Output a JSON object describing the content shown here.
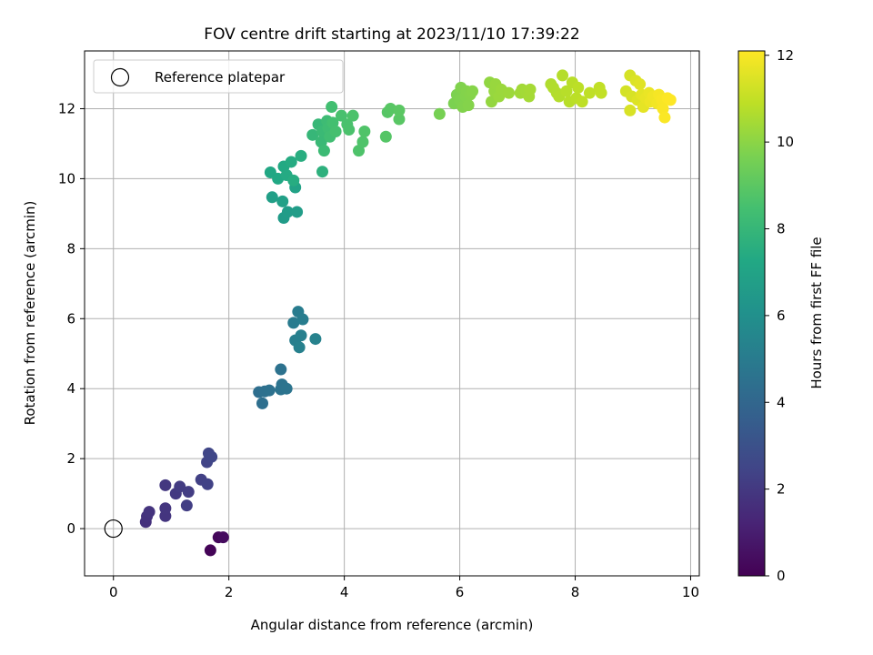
{
  "chart_data": {
    "type": "scatter",
    "title": "FOV centre drift starting at 2023/11/10 17:39:22",
    "xlabel": "Angular distance from reference (arcmin)",
    "ylabel": "Rotation from reference (arcmin)",
    "xlim": [
      -0.5,
      10.15
    ],
    "ylim": [
      -1.35,
      13.65
    ],
    "xticks": [
      "0",
      "2",
      "4",
      "6",
      "8",
      "10"
    ],
    "yticks": [
      "0",
      "2",
      "4",
      "6",
      "8",
      "10",
      "12"
    ],
    "grid": true,
    "legend": {
      "position": "top-left",
      "entries": [
        "Reference platepar"
      ]
    },
    "reference_point": {
      "x": 0,
      "y": 0
    },
    "colorbar": {
      "label": "Hours from first FF file",
      "colormap": "viridis",
      "range": [
        0,
        12.1
      ],
      "ticks": [
        "0",
        "2",
        "4",
        "6",
        "8",
        "10",
        "12"
      ]
    },
    "points": [
      {
        "x": 1.68,
        "y": -0.62,
        "h": 0.1
      },
      {
        "x": 1.82,
        "y": -0.25,
        "h": 0.25
      },
      {
        "x": 1.9,
        "y": -0.25,
        "h": 0.35
      },
      {
        "x": 0.56,
        "y": 0.19,
        "h": 1.7
      },
      {
        "x": 0.58,
        "y": 0.35,
        "h": 1.75
      },
      {
        "x": 0.62,
        "y": 0.48,
        "h": 1.8
      },
      {
        "x": 0.9,
        "y": 0.36,
        "h": 1.85
      },
      {
        "x": 0.9,
        "y": 0.58,
        "h": 1.9
      },
      {
        "x": 0.9,
        "y": 1.24,
        "h": 1.95
      },
      {
        "x": 1.08,
        "y": 1.0,
        "h": 2.0
      },
      {
        "x": 1.15,
        "y": 1.2,
        "h": 2.1
      },
      {
        "x": 1.3,
        "y": 1.05,
        "h": 2.15
      },
      {
        "x": 1.27,
        "y": 0.66,
        "h": 2.2
      },
      {
        "x": 1.52,
        "y": 1.4,
        "h": 2.3
      },
      {
        "x": 1.63,
        "y": 1.27,
        "h": 2.35
      },
      {
        "x": 1.62,
        "y": 1.9,
        "h": 2.45
      },
      {
        "x": 1.65,
        "y": 2.15,
        "h": 2.5
      },
      {
        "x": 1.7,
        "y": 2.05,
        "h": 2.55
      },
      {
        "x": 2.52,
        "y": 3.9,
        "h": 4.35
      },
      {
        "x": 2.58,
        "y": 3.58,
        "h": 4.4
      },
      {
        "x": 2.62,
        "y": 3.92,
        "h": 4.45
      },
      {
        "x": 2.7,
        "y": 3.95,
        "h": 4.5
      },
      {
        "x": 2.9,
        "y": 4.55,
        "h": 4.55
      },
      {
        "x": 2.9,
        "y": 3.98,
        "h": 4.6
      },
      {
        "x": 2.92,
        "y": 4.12,
        "h": 4.6
      },
      {
        "x": 3.0,
        "y": 4.0,
        "h": 4.65
      },
      {
        "x": 3.12,
        "y": 5.88,
        "h": 5.0
      },
      {
        "x": 3.2,
        "y": 6.2,
        "h": 5.05
      },
      {
        "x": 3.28,
        "y": 5.98,
        "h": 5.1
      },
      {
        "x": 3.15,
        "y": 5.38,
        "h": 5.15
      },
      {
        "x": 3.25,
        "y": 5.52,
        "h": 5.2
      },
      {
        "x": 3.22,
        "y": 5.18,
        "h": 5.25
      },
      {
        "x": 3.5,
        "y": 5.42,
        "h": 5.3
      },
      {
        "x": 2.95,
        "y": 8.88,
        "h": 6.6
      },
      {
        "x": 3.02,
        "y": 9.05,
        "h": 6.65
      },
      {
        "x": 3.18,
        "y": 9.05,
        "h": 6.7
      },
      {
        "x": 2.75,
        "y": 9.47,
        "h": 6.8
      },
      {
        "x": 2.93,
        "y": 9.35,
        "h": 6.85
      },
      {
        "x": 3.15,
        "y": 9.75,
        "h": 6.95
      },
      {
        "x": 2.72,
        "y": 10.18,
        "h": 7.2
      },
      {
        "x": 2.85,
        "y": 10.0,
        "h": 7.25
      },
      {
        "x": 2.95,
        "y": 10.35,
        "h": 7.3
      },
      {
        "x": 3.0,
        "y": 10.1,
        "h": 7.35
      },
      {
        "x": 3.08,
        "y": 10.48,
        "h": 7.4
      },
      {
        "x": 3.12,
        "y": 9.95,
        "h": 7.45
      },
      {
        "x": 3.25,
        "y": 10.65,
        "h": 7.5
      },
      {
        "x": 3.62,
        "y": 10.2,
        "h": 7.7
      },
      {
        "x": 3.45,
        "y": 11.25,
        "h": 8.0
      },
      {
        "x": 3.55,
        "y": 11.55,
        "h": 8.05
      },
      {
        "x": 3.6,
        "y": 11.05,
        "h": 8.1
      },
      {
        "x": 3.62,
        "y": 11.35,
        "h": 8.15
      },
      {
        "x": 3.65,
        "y": 10.8,
        "h": 8.2
      },
      {
        "x": 3.7,
        "y": 11.65,
        "h": 8.25
      },
      {
        "x": 3.72,
        "y": 11.45,
        "h": 8.3
      },
      {
        "x": 3.75,
        "y": 11.2,
        "h": 8.35
      },
      {
        "x": 3.78,
        "y": 12.05,
        "h": 8.4
      },
      {
        "x": 3.8,
        "y": 11.6,
        "h": 8.45
      },
      {
        "x": 3.85,
        "y": 11.35,
        "h": 8.5
      },
      {
        "x": 3.95,
        "y": 11.8,
        "h": 8.55
      },
      {
        "x": 4.05,
        "y": 11.55,
        "h": 8.6
      },
      {
        "x": 4.08,
        "y": 11.4,
        "h": 8.62
      },
      {
        "x": 4.15,
        "y": 11.8,
        "h": 8.65
      },
      {
        "x": 4.25,
        "y": 10.8,
        "h": 8.7
      },
      {
        "x": 4.32,
        "y": 11.05,
        "h": 8.72
      },
      {
        "x": 4.35,
        "y": 11.35,
        "h": 8.75
      },
      {
        "x": 4.72,
        "y": 11.2,
        "h": 8.85
      },
      {
        "x": 4.75,
        "y": 11.9,
        "h": 8.9
      },
      {
        "x": 4.8,
        "y": 12.0,
        "h": 8.92
      },
      {
        "x": 4.95,
        "y": 11.7,
        "h": 8.95
      },
      {
        "x": 4.95,
        "y": 11.95,
        "h": 8.98
      },
      {
        "x": 5.65,
        "y": 11.85,
        "h": 9.6
      },
      {
        "x": 5.9,
        "y": 12.15,
        "h": 9.7
      },
      {
        "x": 5.95,
        "y": 12.4,
        "h": 9.72
      },
      {
        "x": 6.0,
        "y": 12.25,
        "h": 9.75
      },
      {
        "x": 6.02,
        "y": 12.6,
        "h": 9.78
      },
      {
        "x": 6.05,
        "y": 12.05,
        "h": 9.8
      },
      {
        "x": 6.1,
        "y": 12.35,
        "h": 9.82
      },
      {
        "x": 6.12,
        "y": 12.5,
        "h": 9.84
      },
      {
        "x": 6.15,
        "y": 12.1,
        "h": 9.86
      },
      {
        "x": 6.18,
        "y": 12.4,
        "h": 9.88
      },
      {
        "x": 6.22,
        "y": 12.5,
        "h": 9.9
      },
      {
        "x": 6.52,
        "y": 12.75,
        "h": 10.1
      },
      {
        "x": 6.55,
        "y": 12.2,
        "h": 10.15
      },
      {
        "x": 6.6,
        "y": 12.5,
        "h": 10.2
      },
      {
        "x": 6.62,
        "y": 12.7,
        "h": 10.22
      },
      {
        "x": 6.68,
        "y": 12.35,
        "h": 10.25
      },
      {
        "x": 6.72,
        "y": 12.55,
        "h": 10.28
      },
      {
        "x": 6.85,
        "y": 12.45,
        "h": 10.32
      },
      {
        "x": 7.05,
        "y": 12.45,
        "h": 10.38
      },
      {
        "x": 7.08,
        "y": 12.55,
        "h": 10.4
      },
      {
        "x": 7.15,
        "y": 12.5,
        "h": 10.42
      },
      {
        "x": 7.2,
        "y": 12.35,
        "h": 10.45
      },
      {
        "x": 7.22,
        "y": 12.55,
        "h": 10.48
      },
      {
        "x": 7.58,
        "y": 12.7,
        "h": 10.65
      },
      {
        "x": 7.62,
        "y": 12.6,
        "h": 10.68
      },
      {
        "x": 7.68,
        "y": 12.45,
        "h": 10.7
      },
      {
        "x": 7.72,
        "y": 12.35,
        "h": 10.72
      },
      {
        "x": 7.78,
        "y": 12.95,
        "h": 10.75
      },
      {
        "x": 7.85,
        "y": 12.5,
        "h": 10.78
      },
      {
        "x": 7.9,
        "y": 12.2,
        "h": 10.8
      },
      {
        "x": 7.95,
        "y": 12.75,
        "h": 10.82
      },
      {
        "x": 8.02,
        "y": 12.3,
        "h": 10.85
      },
      {
        "x": 8.05,
        "y": 12.6,
        "h": 10.87
      },
      {
        "x": 8.12,
        "y": 12.2,
        "h": 10.9
      },
      {
        "x": 8.25,
        "y": 12.45,
        "h": 10.93
      },
      {
        "x": 8.42,
        "y": 12.6,
        "h": 10.96
      },
      {
        "x": 8.45,
        "y": 12.45,
        "h": 10.98
      },
      {
        "x": 8.88,
        "y": 12.5,
        "h": 11.3
      },
      {
        "x": 8.95,
        "y": 12.95,
        "h": 11.35
      },
      {
        "x": 8.98,
        "y": 12.35,
        "h": 11.38
      },
      {
        "x": 8.95,
        "y": 11.95,
        "h": 11.4
      },
      {
        "x": 9.05,
        "y": 12.8,
        "h": 11.45
      },
      {
        "x": 9.08,
        "y": 12.25,
        "h": 11.5
      },
      {
        "x": 9.12,
        "y": 12.7,
        "h": 11.55
      },
      {
        "x": 9.15,
        "y": 12.4,
        "h": 11.6
      },
      {
        "x": 9.18,
        "y": 12.05,
        "h": 11.65
      },
      {
        "x": 9.22,
        "y": 12.3,
        "h": 11.7
      },
      {
        "x": 9.28,
        "y": 12.45,
        "h": 11.75
      },
      {
        "x": 9.3,
        "y": 12.2,
        "h": 11.8
      },
      {
        "x": 9.35,
        "y": 12.35,
        "h": 11.85
      },
      {
        "x": 9.42,
        "y": 12.15,
        "h": 11.9
      },
      {
        "x": 9.45,
        "y": 12.4,
        "h": 11.95
      },
      {
        "x": 9.5,
        "y": 12.25,
        "h": 12.0
      },
      {
        "x": 9.52,
        "y": 12.0,
        "h": 12.02
      },
      {
        "x": 9.55,
        "y": 11.75,
        "h": 12.05
      },
      {
        "x": 9.6,
        "y": 12.3,
        "h": 12.08
      },
      {
        "x": 9.65,
        "y": 12.25,
        "h": 12.1
      }
    ]
  }
}
